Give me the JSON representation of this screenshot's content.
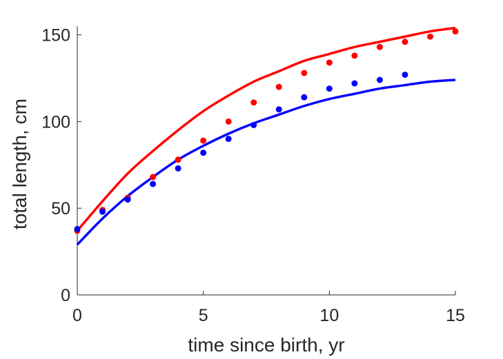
{
  "chart_data": {
    "type": "scatter",
    "title": "",
    "xlabel": "time since birth, yr",
    "ylabel": "total length, cm",
    "xlim": [
      0,
      15
    ],
    "ylim": [
      0,
      155
    ],
    "x_ticks": [
      0,
      5,
      10,
      15
    ],
    "x_tick_labels": [
      "0",
      "5",
      "10",
      "15"
    ],
    "y_ticks": [
      0,
      50,
      100,
      150
    ],
    "y_tick_labels": [
      "0",
      "50",
      "100",
      "150"
    ],
    "grid": false,
    "legend": "none",
    "series": [
      {
        "kind": "points",
        "color": "#ff0000",
        "x": [
          0,
          1,
          2,
          3,
          4,
          5,
          6,
          7,
          8,
          9,
          10,
          11,
          12,
          13,
          14,
          15
        ],
        "y": [
          37,
          49,
          56,
          68,
          78,
          89,
          100,
          111,
          120,
          128,
          134,
          138,
          143,
          146,
          149,
          152
        ]
      },
      {
        "kind": "points",
        "color": "#0000ff",
        "x": [
          0,
          1,
          2,
          3,
          4,
          5,
          6,
          7,
          8,
          9,
          10,
          11,
          12,
          13
        ],
        "y": [
          38,
          48,
          55,
          64,
          73,
          82,
          90,
          98,
          107,
          114,
          119,
          122,
          124,
          127
        ]
      },
      {
        "kind": "curve",
        "color": "#ff0000",
        "x": [
          0,
          1,
          2,
          3,
          4,
          5,
          6,
          7,
          8,
          9,
          10,
          11,
          12,
          13,
          14,
          15
        ],
        "y": [
          37,
          54,
          70,
          83,
          95,
          106,
          115,
          123,
          129,
          135,
          139,
          143,
          146,
          149,
          152,
          154
        ]
      },
      {
        "kind": "curve",
        "color": "#0000ff",
        "x": [
          0,
          1,
          2,
          3,
          4,
          5,
          6,
          7,
          8,
          9,
          10,
          11,
          12,
          13,
          14,
          15
        ],
        "y": [
          29,
          44,
          57,
          68,
          78,
          86,
          93,
          99,
          104,
          109,
          113,
          116,
          119,
          121,
          123,
          124
        ]
      }
    ]
  }
}
